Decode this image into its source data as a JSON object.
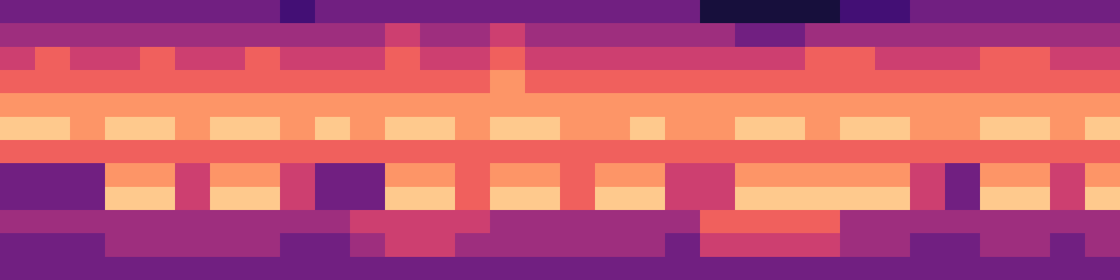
{
  "chart_data": {
    "type": "heatmap",
    "color": "magma",
    "tick_labels": false,
    "clim": [
      0,
      9
    ],
    "cells": [
      [
        3,
        3,
        3,
        3,
        3,
        3,
        3,
        3,
        2,
        3,
        3,
        3,
        3,
        3,
        3,
        3,
        3,
        3,
        3,
        3,
        1,
        1,
        1,
        1,
        2,
        2,
        3,
        3,
        3,
        3,
        3,
        3
      ],
      [
        4,
        4,
        4,
        4,
        4,
        4,
        4,
        4,
        4,
        4,
        4,
        5,
        4,
        4,
        5,
        4,
        4,
        4,
        4,
        4,
        4,
        3,
        3,
        4,
        4,
        4,
        4,
        4,
        4,
        4,
        4,
        4
      ],
      [
        5,
        6,
        5,
        5,
        6,
        5,
        5,
        6,
        5,
        5,
        5,
        6,
        5,
        5,
        6,
        5,
        5,
        5,
        5,
        5,
        5,
        5,
        5,
        6,
        6,
        5,
        5,
        5,
        6,
        6,
        5,
        5
      ],
      [
        6,
        6,
        6,
        6,
        6,
        6,
        6,
        6,
        6,
        6,
        6,
        6,
        6,
        6,
        7,
        6,
        6,
        6,
        6,
        6,
        6,
        6,
        6,
        6,
        6,
        6,
        6,
        6,
        6,
        6,
        6,
        6
      ],
      [
        7,
        7,
        7,
        7,
        7,
        7,
        7,
        7,
        7,
        7,
        7,
        7,
        7,
        7,
        7,
        7,
        7,
        7,
        7,
        7,
        7,
        7,
        7,
        7,
        7,
        7,
        7,
        7,
        7,
        7,
        7,
        7
      ],
      [
        8,
        8,
        7,
        8,
        8,
        7,
        8,
        8,
        7,
        8,
        7,
        8,
        8,
        7,
        8,
        8,
        7,
        7,
        8,
        7,
        7,
        8,
        8,
        7,
        8,
        8,
        7,
        7,
        8,
        8,
        7,
        8
      ],
      [
        6,
        6,
        6,
        6,
        6,
        6,
        6,
        6,
        6,
        6,
        6,
        6,
        6,
        6,
        6,
        6,
        6,
        6,
        6,
        6,
        6,
        6,
        6,
        6,
        6,
        6,
        6,
        6,
        6,
        6,
        6,
        6
      ],
      [
        3,
        3,
        3,
        7,
        7,
        5,
        7,
        7,
        5,
        3,
        3,
        7,
        7,
        6,
        7,
        7,
        6,
        7,
        7,
        5,
        5,
        7,
        7,
        7,
        7,
        7,
        5,
        3,
        7,
        7,
        5,
        7
      ],
      [
        3,
        3,
        3,
        8,
        8,
        5,
        8,
        8,
        5,
        3,
        3,
        8,
        8,
        6,
        8,
        8,
        6,
        8,
        8,
        5,
        5,
        8,
        8,
        8,
        8,
        8,
        5,
        3,
        8,
        8,
        5,
        8
      ],
      [
        4,
        4,
        4,
        4,
        4,
        4,
        4,
        4,
        4,
        4,
        5,
        5,
        5,
        5,
        4,
        4,
        4,
        4,
        4,
        4,
        6,
        6,
        6,
        6,
        4,
        4,
        4,
        4,
        4,
        4,
        4,
        4
      ],
      [
        3,
        3,
        3,
        4,
        4,
        4,
        4,
        4,
        3,
        3,
        4,
        5,
        5,
        4,
        4,
        4,
        4,
        4,
        4,
        3,
        5,
        5,
        5,
        5,
        4,
        4,
        3,
        3,
        4,
        4,
        3,
        4
      ],
      [
        3,
        3,
        3,
        3,
        3,
        3,
        3,
        3,
        3,
        3,
        3,
        3,
        3,
        3,
        3,
        3,
        3,
        3,
        3,
        3,
        3,
        3,
        3,
        3,
        3,
        3,
        3,
        3,
        3,
        3,
        3,
        3
      ]
    ]
  }
}
